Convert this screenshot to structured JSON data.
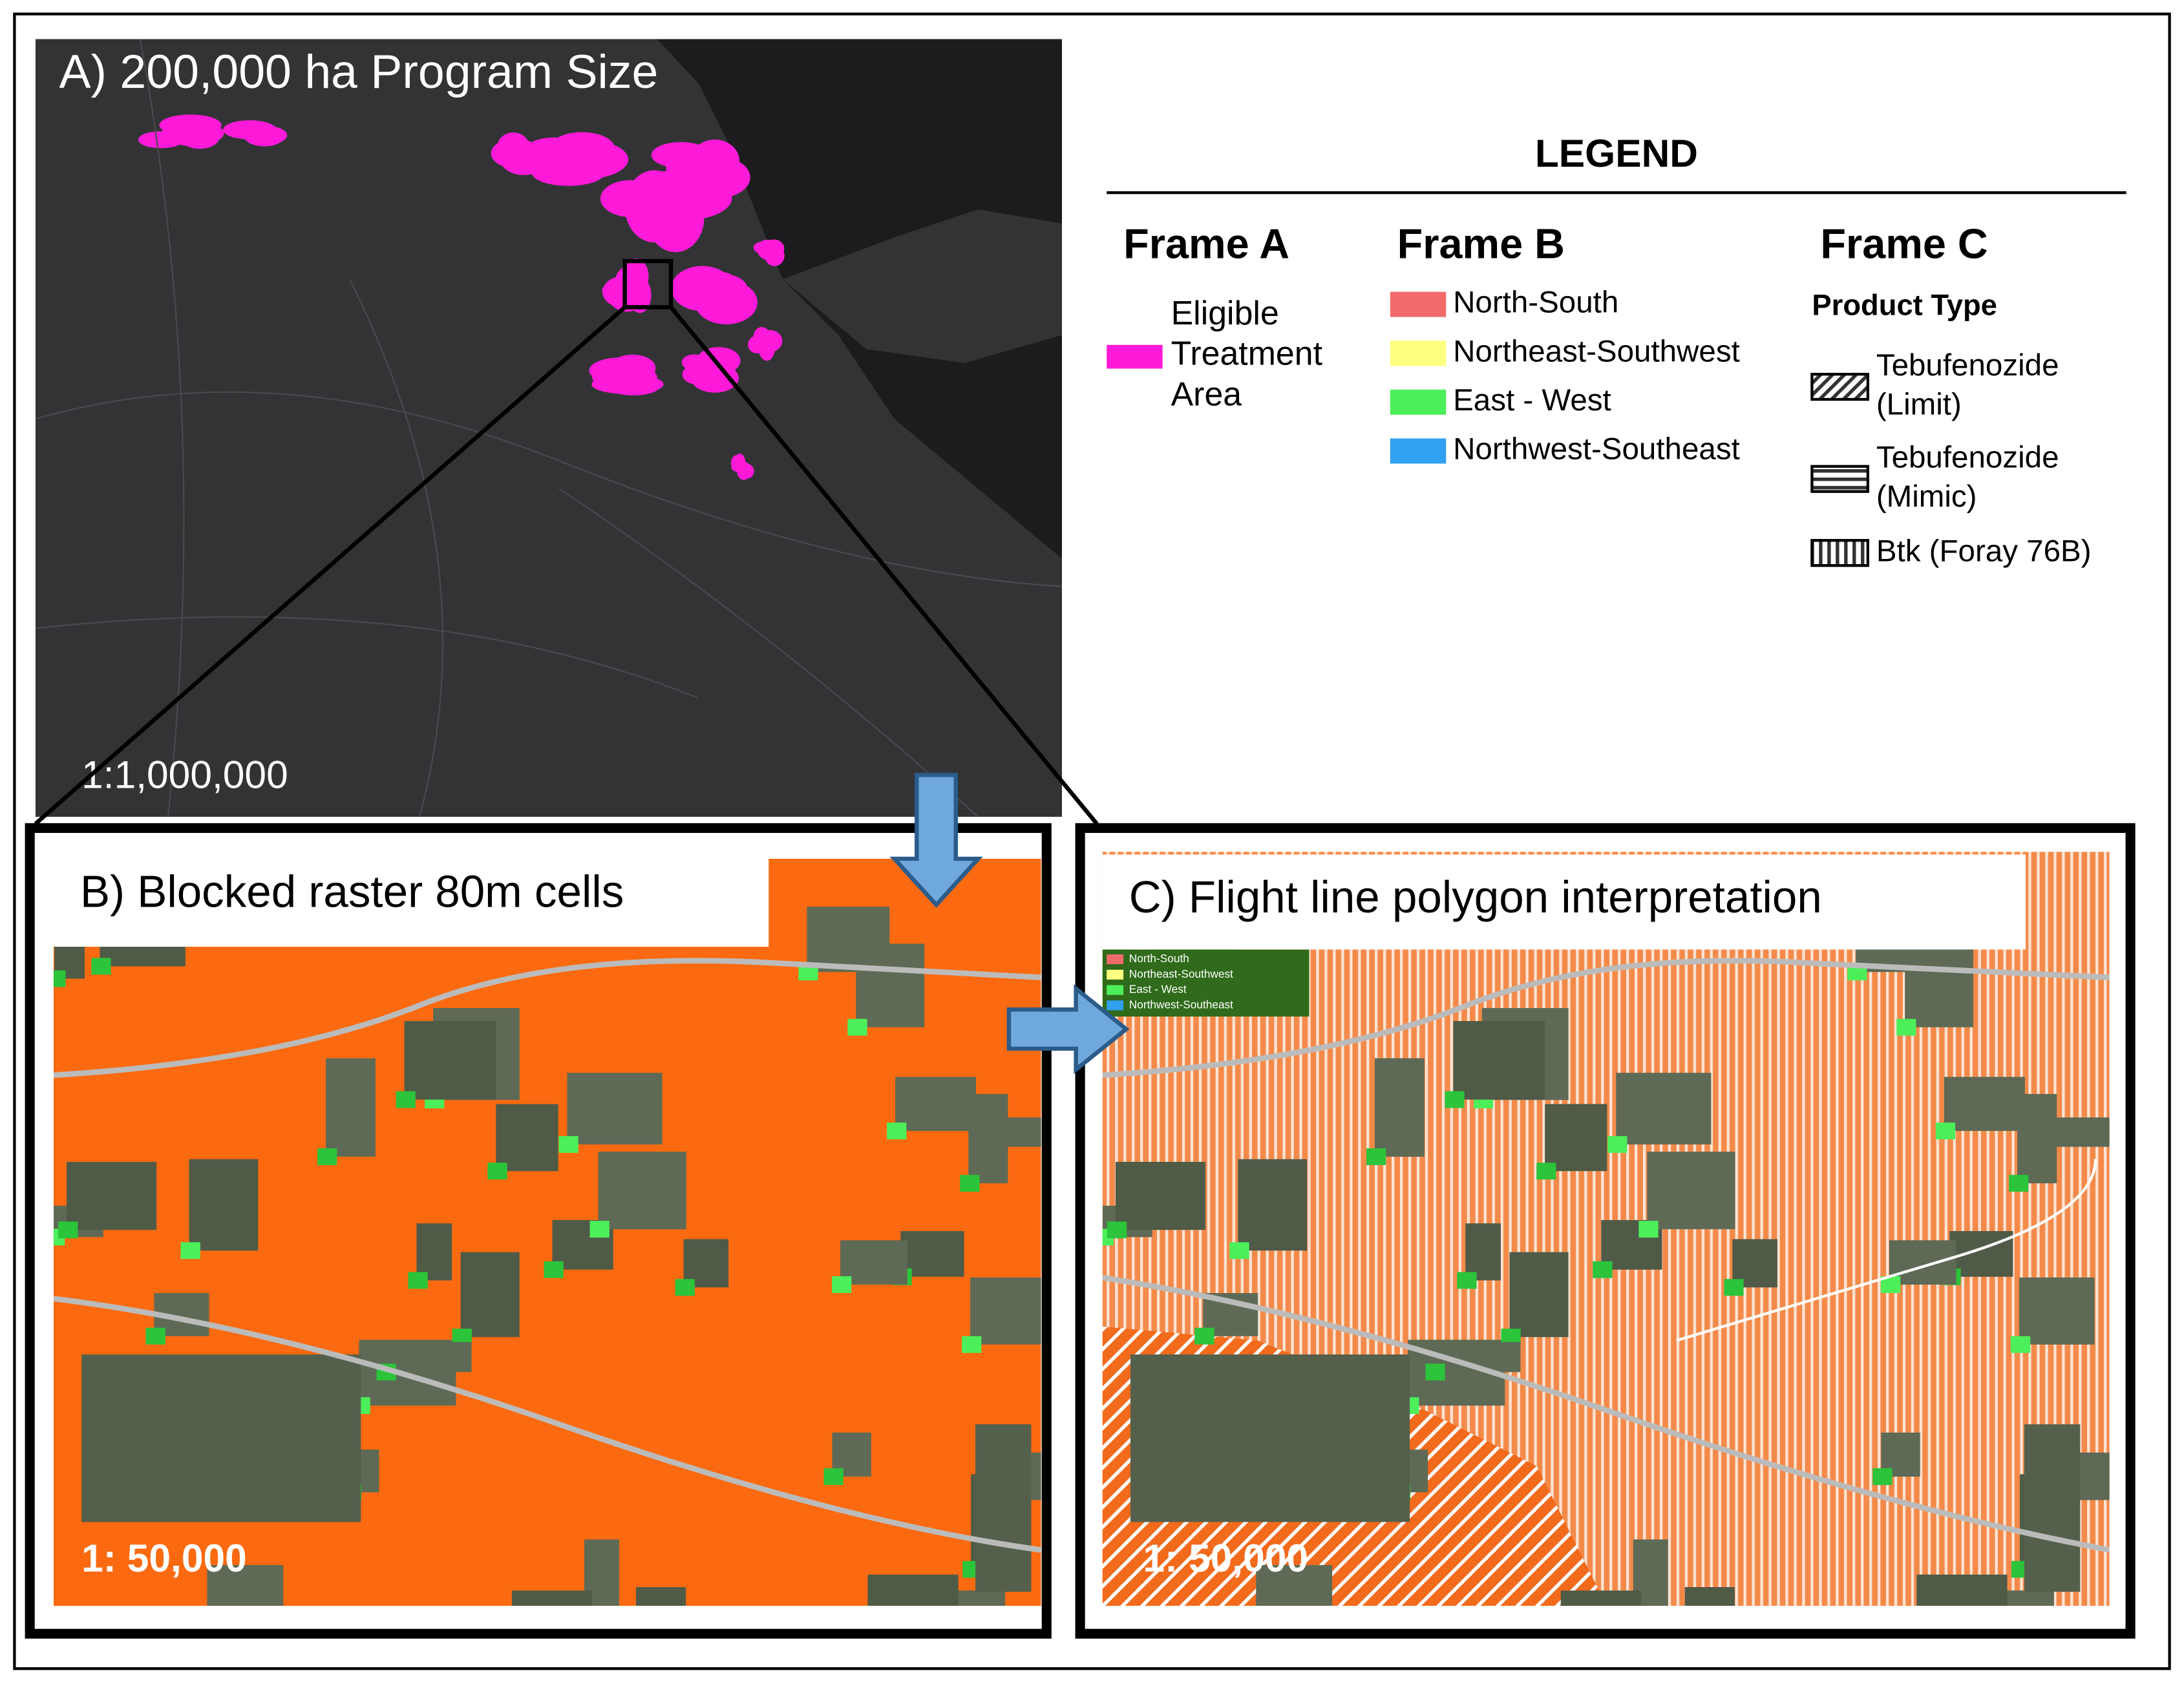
{
  "panel_a": {
    "title": "A) 200,000 ha Program Size",
    "scale": "1:1,000,000"
  },
  "panel_b": {
    "title": "B) Blocked raster 80m cells",
    "scale": "1: 50,000"
  },
  "panel_c": {
    "title": "C) Flight line polygon interpretation",
    "scale": "1: 50,000",
    "inset_legend": [
      {
        "label": "North-South",
        "color": "#f26b6b"
      },
      {
        "label": "Northeast-Southwest",
        "color": "#ffff80"
      },
      {
        "label": "East - West",
        "color": "#4cef5a"
      },
      {
        "label": "Northwest-Southeast",
        "color": "#30a0f0"
      }
    ]
  },
  "legend": {
    "title": "LEGEND",
    "frame_a": {
      "heading": "Frame A",
      "item": {
        "lines": [
          "Eligible",
          "Treatment",
          "Area"
        ],
        "color": "#ff1ad9"
      }
    },
    "frame_b": {
      "heading": "Frame B",
      "items": [
        {
          "label": "North-South",
          "color": "#f26b6b"
        },
        {
          "label": "Northeast-Southwest",
          "color": "#ffff80"
        },
        {
          "label": "East - West",
          "color": "#4cef5a"
        },
        {
          "label": "Northwest-Southeast",
          "color": "#30a0f0"
        }
      ]
    },
    "frame_c": {
      "heading": "Frame C",
      "subheading": "Product Type",
      "items": [
        {
          "lines": [
            "Tebufenozide",
            "(Limit)"
          ],
          "pattern": "diagonal"
        },
        {
          "lines": [
            "Tebufenozide",
            "(Mimic)"
          ],
          "pattern": "horizontal"
        },
        {
          "lines": [
            "Btk (Foray 76B)"
          ],
          "pattern": "vertical"
        }
      ]
    }
  }
}
